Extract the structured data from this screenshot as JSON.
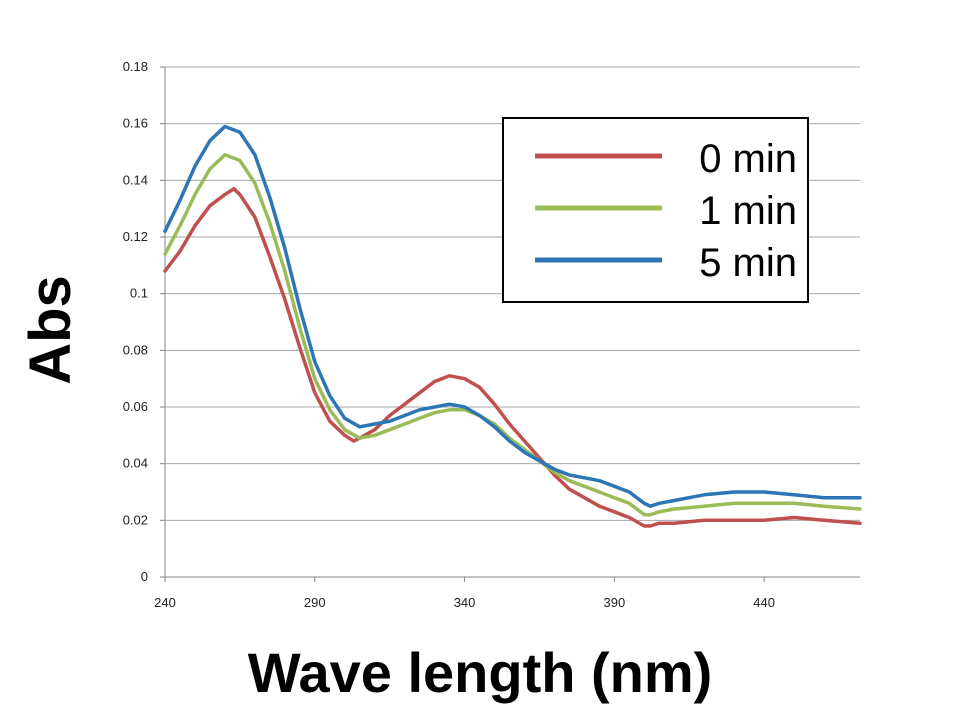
{
  "chart_data": {
    "type": "line",
    "title": "",
    "xlabel": "Wave length (nm)",
    "ylabel": "Abs",
    "xlim": [
      240,
      472
    ],
    "ylim": [
      0,
      0.18
    ],
    "x_ticks": [
      240,
      290,
      340,
      390,
      440
    ],
    "x_tick_labels": [
      "240",
      "290",
      "340",
      "390",
      "440"
    ],
    "y_ticks": [
      0,
      0.02,
      0.04,
      0.06,
      0.08,
      0.1,
      0.12,
      0.14,
      0.16,
      0.18
    ],
    "y_tick_labels": [
      "0",
      "0.02",
      "0.04",
      "0.06",
      "0.08",
      "0.1",
      "0.12",
      "0.14",
      "0.16",
      "0.18"
    ],
    "grid": true,
    "legend_position": "top-right",
    "series": [
      {
        "name": "0 min",
        "color": "#c0504d",
        "x": [
          240,
          245,
          250,
          255,
          260,
          263,
          265,
          270,
          275,
          280,
          285,
          290,
          295,
          300,
          303,
          305,
          310,
          315,
          320,
          325,
          330,
          335,
          340,
          345,
          350,
          355,
          360,
          365,
          370,
          375,
          380,
          385,
          390,
          395,
          400,
          402,
          405,
          410,
          420,
          430,
          440,
          450,
          460,
          472
        ],
        "y": [
          0.108,
          0.115,
          0.124,
          0.131,
          0.135,
          0.137,
          0.135,
          0.127,
          0.113,
          0.098,
          0.081,
          0.065,
          0.055,
          0.05,
          0.048,
          0.049,
          0.052,
          0.057,
          0.061,
          0.065,
          0.069,
          0.071,
          0.07,
          0.067,
          0.061,
          0.054,
          0.048,
          0.042,
          0.036,
          0.031,
          0.028,
          0.025,
          0.023,
          0.021,
          0.018,
          0.018,
          0.019,
          0.019,
          0.02,
          0.02,
          0.02,
          0.021,
          0.02,
          0.019
        ]
      },
      {
        "name": "1 min",
        "color": "#9bbb59",
        "x": [
          240,
          245,
          250,
          255,
          260,
          265,
          270,
          275,
          280,
          285,
          290,
          295,
          300,
          305,
          310,
          315,
          320,
          325,
          330,
          335,
          340,
          345,
          350,
          355,
          360,
          365,
          370,
          375,
          380,
          385,
          390,
          395,
          400,
          402,
          405,
          410,
          420,
          430,
          440,
          450,
          460,
          472
        ],
        "y": [
          0.114,
          0.124,
          0.135,
          0.144,
          0.149,
          0.147,
          0.139,
          0.125,
          0.108,
          0.088,
          0.07,
          0.059,
          0.052,
          0.049,
          0.05,
          0.052,
          0.054,
          0.056,
          0.058,
          0.059,
          0.059,
          0.057,
          0.054,
          0.049,
          0.045,
          0.041,
          0.037,
          0.034,
          0.032,
          0.03,
          0.028,
          0.026,
          0.022,
          0.022,
          0.023,
          0.024,
          0.025,
          0.026,
          0.026,
          0.026,
          0.025,
          0.024
        ]
      },
      {
        "name": "5 min",
        "color": "#2e75b6",
        "x": [
          240,
          245,
          250,
          255,
          260,
          265,
          270,
          275,
          280,
          285,
          290,
          295,
          300,
          305,
          310,
          315,
          320,
          325,
          330,
          335,
          340,
          345,
          350,
          355,
          360,
          365,
          370,
          375,
          380,
          385,
          390,
          395,
          400,
          402,
          405,
          410,
          420,
          430,
          440,
          450,
          460,
          472
        ],
        "y": [
          0.122,
          0.133,
          0.145,
          0.154,
          0.159,
          0.157,
          0.149,
          0.134,
          0.116,
          0.095,
          0.076,
          0.064,
          0.056,
          0.053,
          0.054,
          0.055,
          0.057,
          0.059,
          0.06,
          0.061,
          0.06,
          0.057,
          0.053,
          0.048,
          0.044,
          0.041,
          0.038,
          0.036,
          0.035,
          0.034,
          0.032,
          0.03,
          0.026,
          0.025,
          0.026,
          0.027,
          0.029,
          0.03,
          0.03,
          0.029,
          0.028,
          0.028
        ]
      }
    ]
  }
}
